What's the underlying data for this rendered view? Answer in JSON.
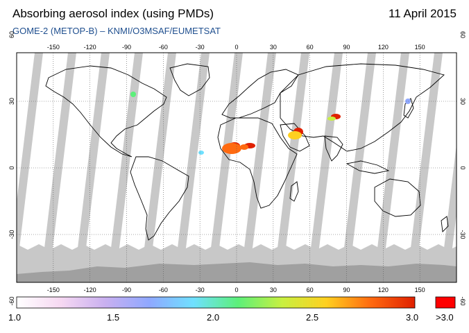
{
  "header": {
    "title": "Absorbing aerosol index (using PMDs)",
    "date": "11 April 2015",
    "subtitle": "GOME-2 (METOP-B)  –   KNMI/O3MSAF/EUMETSAT"
  },
  "map": {
    "lon_ticks": [
      "-150",
      "-120",
      "-90",
      "-60",
      "-30",
      "0",
      "30",
      "60",
      "90",
      "120",
      "150"
    ],
    "lat_ticks_left": [
      "60",
      "30",
      "0",
      "-30",
      "-60"
    ],
    "lat_ticks_right": [
      "60",
      "30",
      "0",
      "-30",
      "-60"
    ],
    "colors": {
      "ocean": "#ffffff",
      "swath_gap": "#c8c8c8",
      "no_data": "#a0a0a0",
      "coast": "#000000",
      "grid": "#555555"
    }
  },
  "colorbar": {
    "labels": [
      "1.0",
      "1.5",
      "2.0",
      "2.5",
      "3.0"
    ],
    "overflow_label": ">3.0",
    "overflow_color": "#ff0000",
    "stops": [
      "#ffffff",
      "#f6d8f2",
      "#c9b0f0",
      "#8fa8ff",
      "#6fe0ff",
      "#5cf07a",
      "#c8f040",
      "#ffd020",
      "#ff6a10",
      "#e02000"
    ]
  }
}
